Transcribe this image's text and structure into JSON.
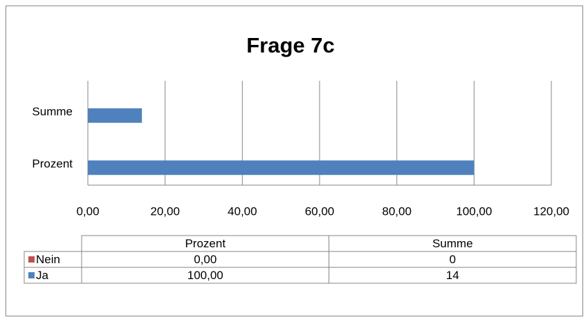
{
  "chart_data": {
    "type": "bar",
    "orientation": "horizontal",
    "title": "Frage 7c",
    "categories": [
      "Prozent",
      "Summe"
    ],
    "series": [
      {
        "name": "Nein",
        "color": "#c0504d",
        "values": [
          0,
          0
        ],
        "value_labels": [
          "0,00",
          "0"
        ]
      },
      {
        "name": "Ja",
        "color": "#4f81bd",
        "values": [
          100,
          14
        ],
        "value_labels": [
          "100,00",
          "14"
        ]
      }
    ],
    "xlim": [
      0,
      120
    ],
    "xticks": [
      {
        "value": 0,
        "label": "0,00"
      },
      {
        "value": 20,
        "label": "20,00"
      },
      {
        "value": 40,
        "label": "40,00"
      },
      {
        "value": 60,
        "label": "60,00"
      },
      {
        "value": 80,
        "label": "80,00"
      },
      {
        "value": 100,
        "label": "100,00"
      },
      {
        "value": 120,
        "label": "120,00"
      }
    ],
    "grid": true,
    "data_table": true
  }
}
